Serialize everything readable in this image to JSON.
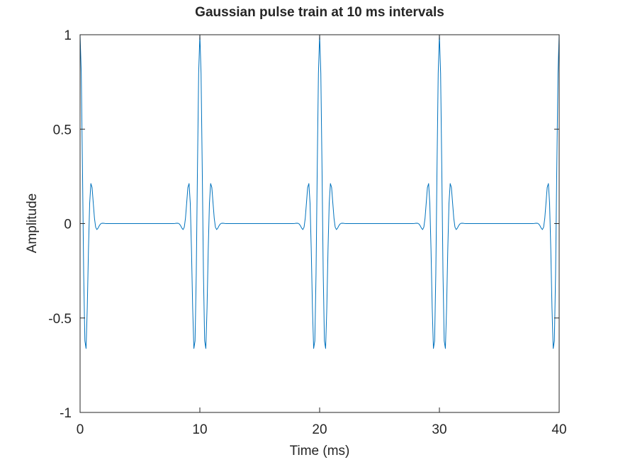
{
  "chart_data": {
    "type": "line",
    "title": "Gaussian pulse train at 10 ms intervals",
    "xlabel": "Time (ms)",
    "ylabel": "Amplitude",
    "xlim": [
      0,
      40
    ],
    "ylim": [
      -1,
      1
    ],
    "xticks": [
      0,
      10,
      20,
      30,
      40
    ],
    "xtick_labels": [
      "0",
      "10",
      "20",
      "30",
      "40"
    ],
    "yticks": [
      -1,
      -0.5,
      0,
      0.5,
      1
    ],
    "ytick_labels": [
      "-1",
      "-0.5",
      "0",
      "0.5",
      "1"
    ],
    "grid": false,
    "series": [
      {
        "name": "pulse train",
        "color": "#0072bd",
        "pulse_centers_ms": [
          0,
          10,
          20,
          30,
          40
        ],
        "carrier_frequency_khz": 1.0,
        "gaussian_sigma_ms": 0.55,
        "peak_amplitude": 1.0,
        "sample_step_ms": 0.1,
        "x_range": [
          0,
          40
        ]
      }
    ]
  }
}
